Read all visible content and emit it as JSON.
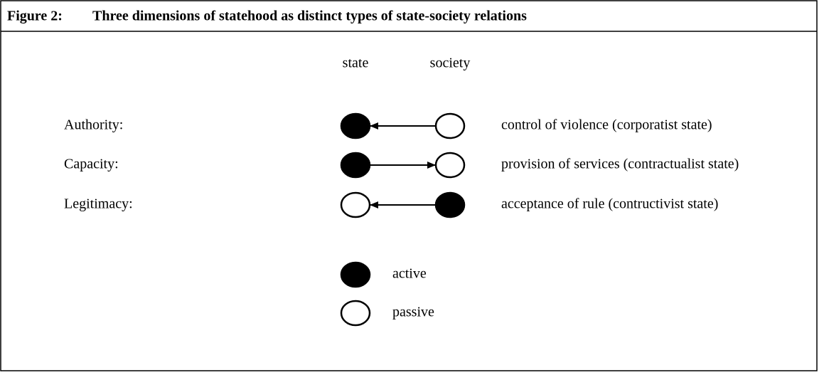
{
  "header": {
    "label": "Figure 2:",
    "title": "Three dimensions of statehood as distinct types of state-society relations"
  },
  "columns": [
    "state",
    "society"
  ],
  "rows": [
    {
      "label": "Authority:",
      "description": "control of violence (corporatist state)"
    },
    {
      "label": "Capacity:",
      "description": "provision of services (contractualist state)"
    },
    {
      "label": "Legitimacy:",
      "description": "acceptance of rule (contructivist state)"
    }
  ],
  "legend": [
    "active",
    "passive"
  ]
}
